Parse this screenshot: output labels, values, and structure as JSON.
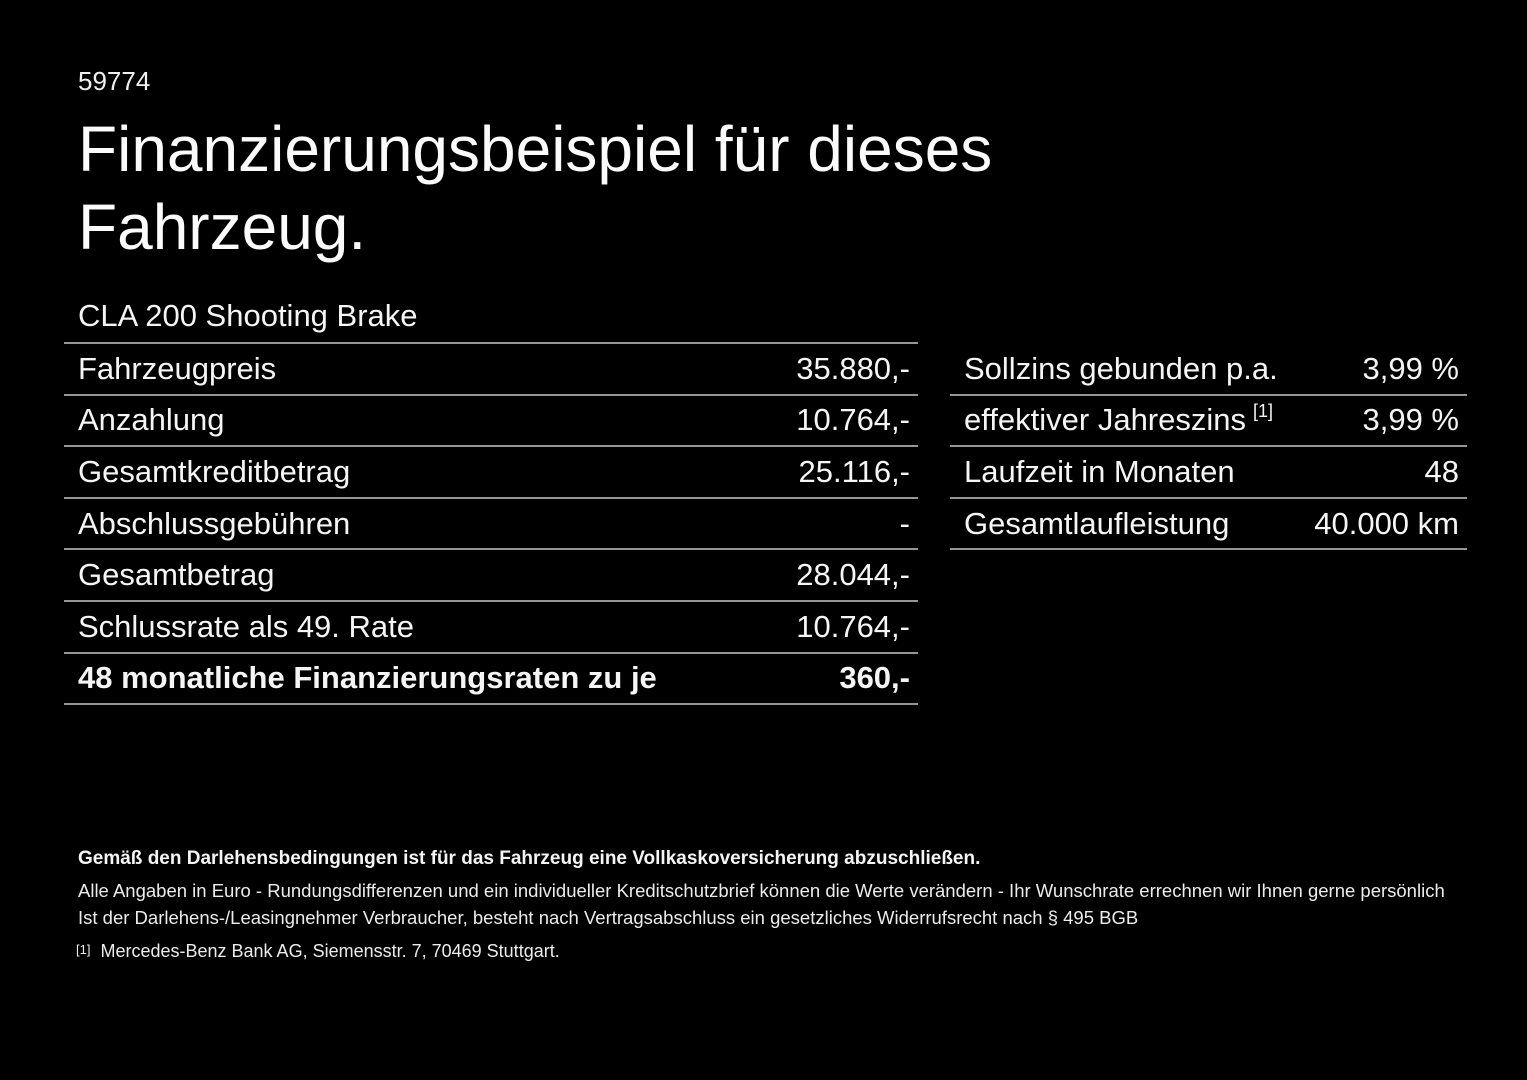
{
  "page": {
    "background_color": "#000000",
    "text_color": "#f5f5f5",
    "divider_color": "#969696",
    "ref_number": "59774",
    "title": "Finanzierungsbeispiel für dieses Fahrzeug.",
    "vehicle_model": "CLA 200 Shooting Brake"
  },
  "finance_table": {
    "rows": [
      {
        "label": "Fahrzeugpreis",
        "value": "35.880,-"
      },
      {
        "label": "Anzahlung",
        "value": "10.764,-"
      },
      {
        "label": "Gesamtkreditbetrag",
        "value": "25.116,-"
      },
      {
        "label": "Abschlussgebühren",
        "value": "-"
      },
      {
        "label": "Gesamtbetrag",
        "value": "28.044,-"
      },
      {
        "label": "Schlussrate als 49. Rate",
        "value": "10.764,-"
      },
      {
        "label": "48 monatliche Finanzierungsraten zu je",
        "value": "360,-"
      }
    ]
  },
  "conditions_table": {
    "rows": [
      {
        "label": "Sollzins gebunden p.a.",
        "value": "3,99 %"
      },
      {
        "label": "effektiver Jahreszins",
        "sup": "[1]",
        "value": "3,99 %"
      },
      {
        "label": "Laufzeit in Monaten",
        "value": "48"
      },
      {
        "label": "Gesamtlaufleistung",
        "value": "40.000 km"
      }
    ]
  },
  "footer": {
    "insurance_note": "Gemäß den Darlehensbedingungen ist für das Fahrzeug eine Vollkaskoversicherung abzuschließen.",
    "note_line1": "Alle Angaben in Euro - Rundungsdifferenzen und ein individueller Kreditschutzbrief können die Werte verändern - Ihr Wunschrate errechnen wir Ihnen gerne persönlich",
    "note_line2": "Ist der Darlehens-/Leasingnehmer Verbraucher, besteht nach Vertragsabschluss ein gesetzliches Widerrufsrecht nach § 495 BGB",
    "footnote_marker": "[1]",
    "footnote_text": "Mercedes-Benz Bank AG, Siemensstr. 7, 70469 Stuttgart."
  }
}
